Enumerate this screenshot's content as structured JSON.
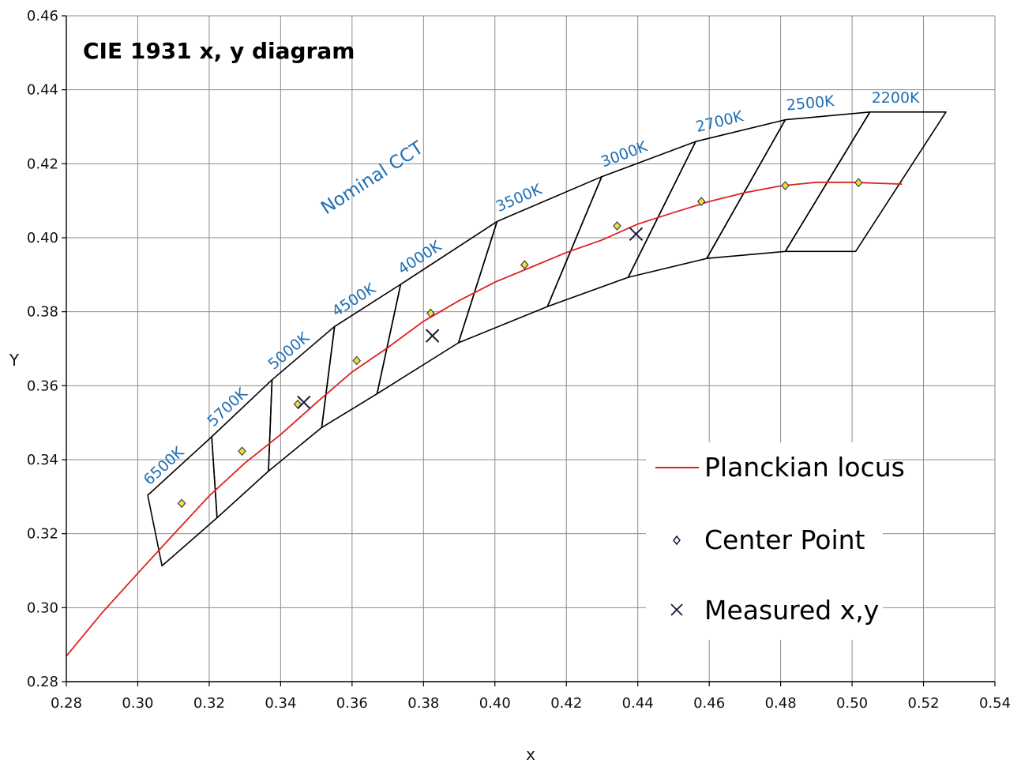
{
  "chart_data": {
    "type": "scatter",
    "title": "CIE 1931 x, y diagram",
    "xlabel": "x",
    "ylabel": "Y",
    "xlim": [
      0.28,
      0.54
    ],
    "ylim": [
      0.28,
      0.46
    ],
    "x_ticks": [
      "0.28",
      "0.30",
      "0.32",
      "0.34",
      "0.36",
      "0.38",
      "0.40",
      "0.42",
      "0.44",
      "0.46",
      "0.48",
      "0.50",
      "0.52",
      "0.54"
    ],
    "y_ticks": [
      "0.28",
      "0.30",
      "0.32",
      "0.34",
      "0.36",
      "0.38",
      "0.40",
      "0.42",
      "0.44",
      "0.46"
    ],
    "grid": true,
    "legend_position": "bottom-right",
    "legend": [
      "Planckian locus",
      "Center Point",
      "Measured x,y"
    ],
    "annotation": "Nominal CCT",
    "series": [
      {
        "name": "Planckian locus",
        "type": "line",
        "color": "#e02020",
        "points": [
          [
            0.28,
            0.2869
          ],
          [
            0.29,
            0.2986
          ],
          [
            0.3,
            0.3093
          ],
          [
            0.31,
            0.3198
          ],
          [
            0.32,
            0.3302
          ],
          [
            0.33,
            0.3391
          ],
          [
            0.34,
            0.3468
          ],
          [
            0.35,
            0.3554
          ],
          [
            0.36,
            0.3637
          ],
          [
            0.37,
            0.3703
          ],
          [
            0.38,
            0.3774
          ],
          [
            0.39,
            0.383
          ],
          [
            0.4,
            0.388
          ],
          [
            0.41,
            0.392
          ],
          [
            0.42,
            0.396
          ],
          [
            0.43,
            0.3994
          ],
          [
            0.44,
            0.4037
          ],
          [
            0.45,
            0.4068
          ],
          [
            0.46,
            0.4098
          ],
          [
            0.47,
            0.4122
          ],
          [
            0.48,
            0.414
          ],
          [
            0.49,
            0.415
          ],
          [
            0.5,
            0.415
          ],
          [
            0.514,
            0.4145
          ]
        ]
      },
      {
        "name": "Center Point",
        "type": "scatter",
        "marker": "diamond",
        "color": "#f2e32a",
        "points": [
          [
            0.3123,
            0.3282
          ],
          [
            0.3292,
            0.3423
          ],
          [
            0.3448,
            0.355
          ],
          [
            0.3613,
            0.3668
          ],
          [
            0.382,
            0.3796
          ],
          [
            0.4083,
            0.3927
          ],
          [
            0.4342,
            0.4032
          ],
          [
            0.4578,
            0.4098
          ],
          [
            0.4813,
            0.4141
          ],
          [
            0.5018,
            0.4149
          ]
        ]
      },
      {
        "name": "Measured x,y",
        "type": "scatter",
        "marker": "x",
        "color": "#1a1a3c",
        "points": [
          [
            0.3465,
            0.3555
          ],
          [
            0.3825,
            0.3735
          ],
          [
            0.4395,
            0.401
          ]
        ]
      }
    ],
    "cct_labels": [
      "6500K",
      "5700K",
      "5000K",
      "4500K",
      "4000K",
      "3500K",
      "3000K",
      "2700K",
      "2500K",
      "2200K"
    ],
    "quadrangles": [
      [
        [
          0.3028,
          0.3304
        ],
        [
          0.3207,
          0.3462
        ],
        [
          0.3222,
          0.3243
        ],
        [
          0.3068,
          0.3113
        ]
      ],
      [
        [
          0.3207,
          0.3462
        ],
        [
          0.3376,
          0.3616
        ],
        [
          0.3366,
          0.3369
        ],
        [
          0.3222,
          0.3243
        ]
      ],
      [
        [
          0.3376,
          0.3616
        ],
        [
          0.3551,
          0.376
        ],
        [
          0.3515,
          0.3487
        ],
        [
          0.3366,
          0.3369
        ]
      ],
      [
        [
          0.3551,
          0.376
        ],
        [
          0.3736,
          0.3874
        ],
        [
          0.367,
          0.3578
        ],
        [
          0.3515,
          0.3487
        ]
      ],
      [
        [
          0.3736,
          0.3874
        ],
        [
          0.4006,
          0.4044
        ],
        [
          0.3898,
          0.3716
        ],
        [
          0.367,
          0.3578
        ]
      ],
      [
        [
          0.4006,
          0.4044
        ],
        [
          0.4299,
          0.4165
        ],
        [
          0.4147,
          0.3814
        ],
        [
          0.3898,
          0.3716
        ]
      ],
      [
        [
          0.4299,
          0.4165
        ],
        [
          0.4562,
          0.426
        ],
        [
          0.4373,
          0.3893
        ],
        [
          0.4147,
          0.3814
        ]
      ],
      [
        [
          0.4562,
          0.426
        ],
        [
          0.4813,
          0.4319
        ],
        [
          0.4593,
          0.3944
        ],
        [
          0.4373,
          0.3893
        ]
      ],
      [
        [
          0.4813,
          0.4319
        ],
        [
          0.505,
          0.434
        ],
        [
          0.4813,
          0.3963
        ],
        [
          0.4593,
          0.3944
        ]
      ],
      [
        [
          0.505,
          0.434
        ],
        [
          0.5263,
          0.434
        ],
        [
          0.501,
          0.3963
        ],
        [
          0.4813,
          0.3963
        ]
      ]
    ]
  }
}
